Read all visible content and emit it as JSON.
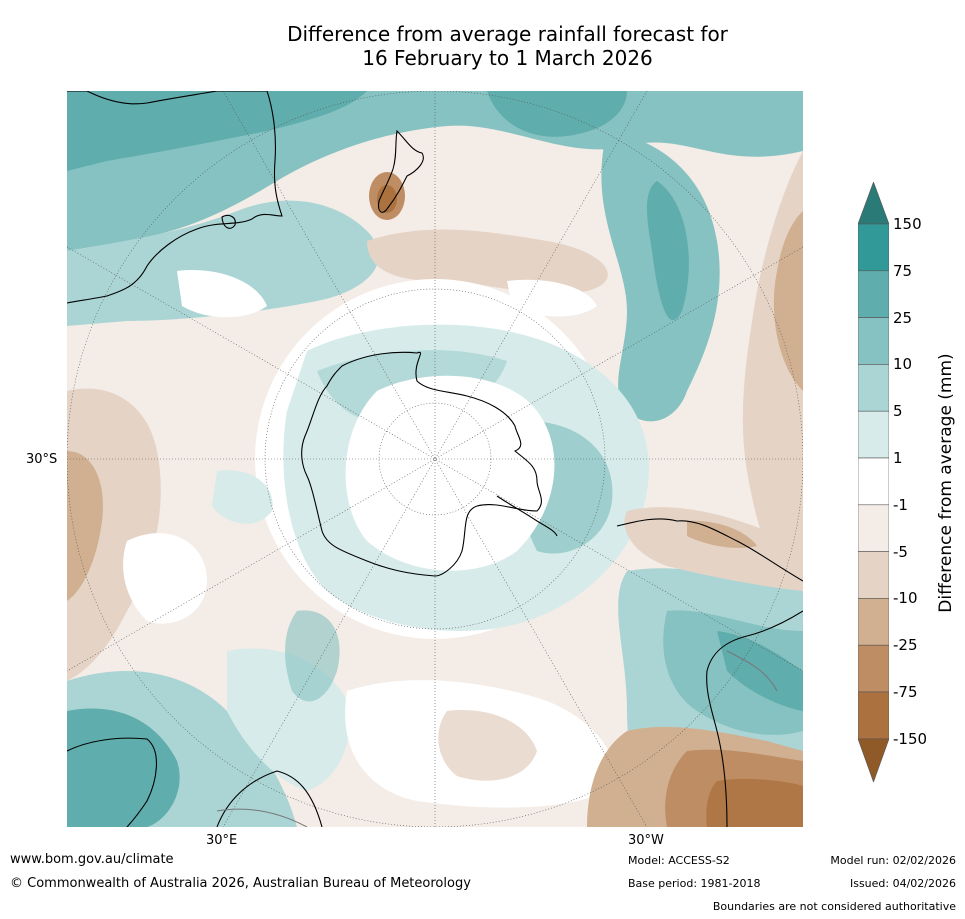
{
  "title": {
    "line1": "Difference from average rainfall forecast for",
    "line2": "16 February to 1 March 2026"
  },
  "map": {
    "projection": "South polar stereographic",
    "lat_labels": [
      "30°S"
    ],
    "lon_labels": [
      "30°E",
      "30°W"
    ]
  },
  "legend": {
    "title": "Difference from average (mm)",
    "ticks": [
      "150",
      "75",
      "25",
      "10",
      "5",
      "1",
      "-1",
      "-5",
      "-10",
      "-25",
      "-75",
      "-150"
    ],
    "colors": {
      "above_150": "#2a7b78",
      "75_150": "#319a98",
      "25_75": "#5fadac",
      "10_25": "#86c2c1",
      "5_10": "#abd5d4",
      "1_5": "#d6ebea",
      "neutral": "#ffffff",
      "m1_m5": "#f4ece7",
      "m5_m10": "#e5d3c6",
      "m10_m25": "#d1b092",
      "m25_m75": "#be8d63",
      "m75_m150": "#ab723f",
      "below_m150": "#8f5a28"
    }
  },
  "footer": {
    "website": "www.bom.gov.au/climate",
    "copyright": "© Commonwealth of Australia 2026, Australian Bureau of Meteorology",
    "model": "Model: ACCESS-S2",
    "base_period": "Base period: 1981-2018",
    "model_run": "Model run: 02/02/2026",
    "issued": "Issued: 04/02/2026",
    "disclaimer": "Boundaries are not considered authoritative"
  }
}
